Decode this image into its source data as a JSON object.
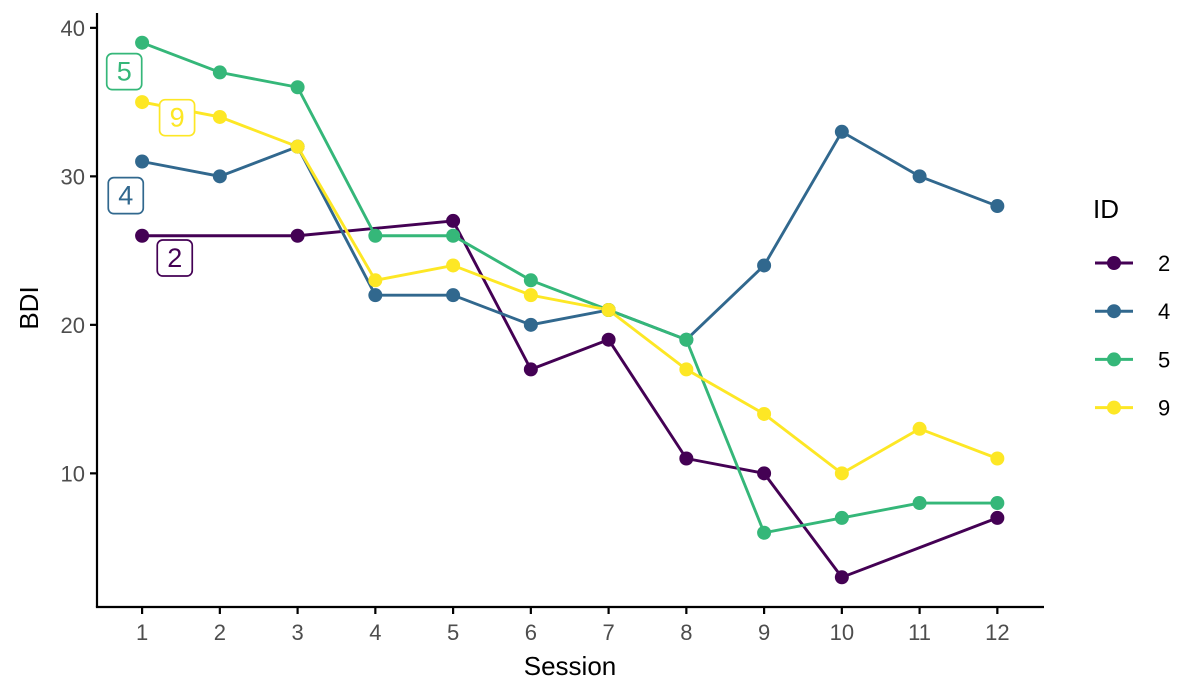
{
  "chart_data": {
    "type": "line",
    "title": "",
    "xlabel": "Session",
    "ylabel": "BDI",
    "legend_title": "ID",
    "legend_position": "right",
    "grid": false,
    "background": "#ffffff",
    "axis_color": "#000000",
    "tick_label_color": "#4d4d4d",
    "x_ticks": [
      1,
      2,
      3,
      4,
      5,
      6,
      7,
      8,
      9,
      10,
      11,
      12
    ],
    "y_ticks": [
      10,
      20,
      30,
      40
    ],
    "xlim": [
      0.42,
      12.6
    ],
    "ylim": [
      1,
      41
    ],
    "series": [
      {
        "name": "2",
        "color": "#440154",
        "points": [
          [
            1,
            26
          ],
          [
            3,
            26
          ],
          [
            5,
            27
          ],
          [
            6,
            17
          ],
          [
            7,
            19
          ],
          [
            8,
            11
          ],
          [
            9,
            10
          ],
          [
            10,
            3
          ],
          [
            12,
            7
          ]
        ]
      },
      {
        "name": "4",
        "color": "#31688E",
        "points": [
          [
            1,
            31
          ],
          [
            2,
            30
          ],
          [
            3,
            32
          ],
          [
            4,
            22
          ],
          [
            5,
            22
          ],
          [
            6,
            20
          ],
          [
            7,
            21
          ],
          [
            8,
            19
          ],
          [
            9,
            24
          ],
          [
            10,
            33
          ],
          [
            11,
            30
          ],
          [
            12,
            28
          ]
        ]
      },
      {
        "name": "5",
        "color": "#35B779",
        "points": [
          [
            1,
            39
          ],
          [
            2,
            37
          ],
          [
            3,
            36
          ],
          [
            4,
            26
          ],
          [
            5,
            26
          ],
          [
            6,
            23
          ],
          [
            7,
            21
          ],
          [
            8,
            19
          ],
          [
            9,
            6
          ],
          [
            10,
            7
          ],
          [
            11,
            8
          ],
          [
            12,
            8
          ]
        ]
      },
      {
        "name": "9",
        "color": "#FDE725",
        "points": [
          [
            1,
            35
          ],
          [
            2,
            34
          ],
          [
            3,
            32
          ],
          [
            4,
            23
          ],
          [
            5,
            24
          ],
          [
            6,
            22
          ],
          [
            7,
            21
          ],
          [
            8,
            17
          ],
          [
            9,
            14
          ],
          [
            10,
            10
          ],
          [
            11,
            13
          ],
          [
            12,
            11
          ]
        ]
      }
    ],
    "annotations": [
      {
        "label": "5",
        "x": 0.77,
        "y": 37.05,
        "color": "#35B779"
      },
      {
        "label": "9",
        "x": 1.45,
        "y": 33.95,
        "color": "#FDE725"
      },
      {
        "label": "4",
        "x": 0.79,
        "y": 28.7,
        "color": "#31688E"
      },
      {
        "label": "2",
        "x": 1.42,
        "y": 24.5,
        "color": "#440154"
      }
    ],
    "legend_items": [
      {
        "label": "2",
        "color": "#440154"
      },
      {
        "label": "4",
        "color": "#31688E"
      },
      {
        "label": "5",
        "color": "#35B779"
      },
      {
        "label": "9",
        "color": "#FDE725"
      }
    ]
  }
}
